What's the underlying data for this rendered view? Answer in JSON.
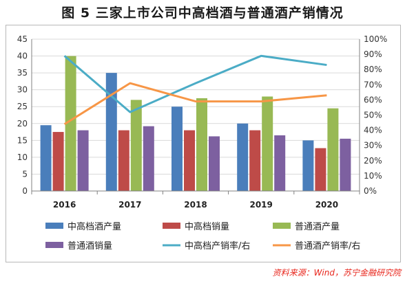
{
  "header": {
    "title": "图 5  三家上市公司中高档酒与普通酒产销情况"
  },
  "footer": {
    "source": "资料来源：Wind，苏宁金融研究院"
  },
  "chart_data": {
    "type": "bar",
    "categories": [
      "2016",
      "2017",
      "2018",
      "2019",
      "2020"
    ],
    "y_left": {
      "ylim": [
        0,
        45
      ],
      "ticks": [
        "0",
        "5",
        "10",
        "15",
        "20",
        "25",
        "30",
        "35",
        "40",
        "45"
      ]
    },
    "y_right": {
      "ylim": [
        0,
        100
      ],
      "ticks": [
        "0%",
        "10%",
        "20%",
        "30%",
        "40%",
        "50%",
        "60%",
        "70%",
        "80%",
        "90%",
        "100%"
      ]
    },
    "series": [
      {
        "name": "中高档酒产量",
        "type": "bar",
        "axis": "left",
        "color": "#4a7ebb",
        "values": [
          19.5,
          35,
          25,
          20,
          15
        ]
      },
      {
        "name": "中高档销量",
        "type": "bar",
        "axis": "left",
        "color": "#be4b48",
        "values": [
          17.5,
          18,
          18,
          18,
          12.7
        ]
      },
      {
        "name": "普通酒产量",
        "type": "bar",
        "axis": "left",
        "color": "#98b954",
        "values": [
          40,
          27,
          27.5,
          28,
          24.5
        ]
      },
      {
        "name": "普通酒销量",
        "type": "bar",
        "axis": "left",
        "color": "#7d60a0",
        "values": [
          18,
          19.2,
          16.2,
          16.5,
          15.5
        ]
      },
      {
        "name": "中高档产销率/右",
        "type": "line",
        "axis": "right",
        "color": "#4bacc6",
        "values": [
          89,
          52,
          71,
          89,
          83
        ]
      },
      {
        "name": "普通酒产销率/右",
        "type": "line",
        "axis": "right",
        "color": "#f79646",
        "values": [
          44,
          71,
          59,
          59,
          63
        ]
      }
    ],
    "grid": true,
    "legend_position": "bottom"
  }
}
